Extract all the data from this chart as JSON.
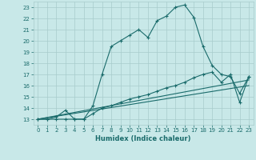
{
  "xlabel": "Humidex (Indice chaleur)",
  "xlim": [
    -0.5,
    23.5
  ],
  "ylim": [
    12.5,
    23.5
  ],
  "xticks": [
    0,
    1,
    2,
    3,
    4,
    5,
    6,
    7,
    8,
    9,
    10,
    11,
    12,
    13,
    14,
    15,
    16,
    17,
    18,
    19,
    20,
    21,
    22,
    23
  ],
  "yticks": [
    13,
    14,
    15,
    16,
    17,
    18,
    19,
    20,
    21,
    22,
    23
  ],
  "background_color": "#c8e8e8",
  "grid_color": "#a8cccc",
  "line_color": "#1a6b6b",
  "line1_x": [
    0,
    1,
    2,
    3,
    4,
    5,
    6,
    7,
    8,
    9,
    10,
    11,
    12,
    13,
    14,
    15,
    16,
    17,
    18,
    19,
    20,
    21,
    22,
    23
  ],
  "line1_y": [
    13.0,
    13.0,
    13.2,
    13.8,
    13.0,
    13.0,
    14.2,
    17.0,
    19.5,
    20.0,
    20.5,
    21.0,
    20.3,
    21.8,
    22.2,
    23.0,
    23.2,
    22.1,
    19.5,
    17.8,
    17.0,
    16.8,
    15.3,
    16.8
  ],
  "line2_x": [
    0,
    1,
    2,
    3,
    4,
    5,
    6,
    7,
    8,
    9,
    10,
    11,
    12,
    13,
    14,
    15,
    16,
    17,
    18,
    19,
    20,
    21,
    22,
    23
  ],
  "line2_y": [
    13.0,
    13.0,
    13.0,
    13.0,
    13.0,
    13.0,
    13.5,
    14.0,
    14.2,
    14.5,
    14.8,
    15.0,
    15.2,
    15.5,
    15.8,
    16.0,
    16.3,
    16.7,
    17.0,
    17.2,
    16.3,
    17.0,
    14.5,
    16.8
  ],
  "line3_x": [
    0,
    23
  ],
  "line3_y": [
    13.0,
    16.5
  ],
  "line4_x": [
    0,
    23
  ],
  "line4_y": [
    13.0,
    16.0
  ]
}
